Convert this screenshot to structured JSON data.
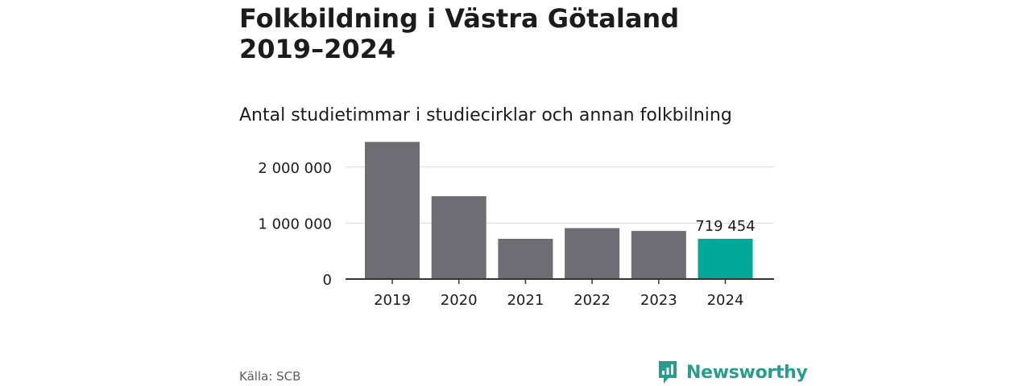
{
  "header": {
    "title_line1": "Folkbildning i Västra Götaland",
    "title_line2": "2019–2024",
    "subtitle": "Antal studietimmar i studiecirklar och annan folkbilning"
  },
  "footer": {
    "source": "Källa: SCB",
    "brand": "Newsworthy"
  },
  "colors": {
    "bar": "#6e6d73",
    "highlight": "#00a899",
    "axis": "#333333",
    "grid": "#d9d9d9",
    "text": "#1c1c1c",
    "brand": "#2a9c8e"
  },
  "chart_data": {
    "type": "bar",
    "categories": [
      "2019",
      "2020",
      "2021",
      "2022",
      "2023",
      "2024"
    ],
    "values": [
      2450000,
      1480000,
      719000,
      910000,
      860000,
      719454
    ],
    "highlight_index": 5,
    "data_labels": [
      {
        "index": 5,
        "text": "719 454"
      }
    ],
    "yticks": [
      {
        "value": 0,
        "label": "0"
      },
      {
        "value": 1000000,
        "label": "1 000 000"
      },
      {
        "value": 2000000,
        "label": "2 000 000"
      }
    ],
    "ylim": [
      0,
      2500000
    ],
    "grid": true,
    "legend": "none"
  }
}
